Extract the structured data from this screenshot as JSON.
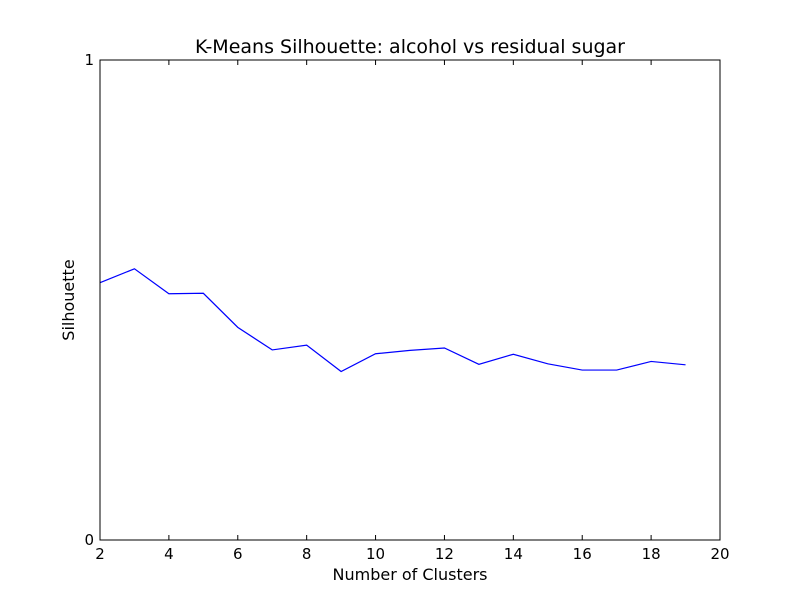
{
  "chart_data": {
    "type": "line",
    "title": "K-Means Silhouette: alcohol vs residual sugar",
    "xlabel": "Number of Clusters",
    "ylabel": "Silhouette",
    "xlim": [
      2,
      20
    ],
    "ylim": [
      0,
      1
    ],
    "xticks": [
      2,
      4,
      6,
      8,
      10,
      12,
      14,
      16,
      18,
      20
    ],
    "yticks": [
      0,
      1
    ],
    "grid": false,
    "legend": "none",
    "series": [
      {
        "color": "#0000ff",
        "x": [
          2,
          3,
          4,
          5,
          6,
          7,
          8,
          9,
          10,
          11,
          12,
          13,
          14,
          15,
          16,
          17,
          18,
          19
        ],
        "y": [
          0.536,
          0.565,
          0.513,
          0.514,
          0.443,
          0.396,
          0.406,
          0.351,
          0.388,
          0.395,
          0.4,
          0.366,
          0.387,
          0.367,
          0.354,
          0.354,
          0.372,
          0.365
        ]
      }
    ]
  }
}
